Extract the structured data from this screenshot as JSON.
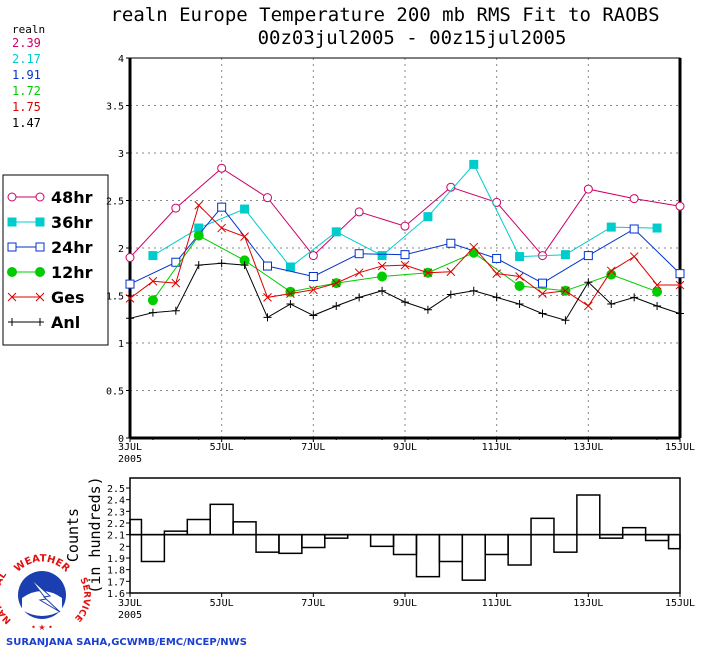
{
  "header": {
    "title_line1": "realn Europe Temperature 200 mb RMS Fit to RAOBS",
    "title_line2": "00z03jul2005 - 00z15jul2005"
  },
  "summary": {
    "label": "realn",
    "values": [
      {
        "text": "2.39",
        "color": "#cc0066"
      },
      {
        "text": "2.17",
        "color": "#00cccc"
      },
      {
        "text": "1.91",
        "color": "#0033cc"
      },
      {
        "text": "1.72",
        "color": "#00cc00"
      },
      {
        "text": "1.75",
        "color": "#dd0000"
      },
      {
        "text": "1.47",
        "color": "#000000"
      }
    ]
  },
  "credit": "SURANJANA SAHA,GCWMB/EMC/NCEP/NWS",
  "logo": {
    "top_text": "WEATHER",
    "left_text": "NATIONAL",
    "right_text": "SERVICE"
  },
  "chart_data": [
    {
      "type": "line",
      "title": "realn Europe Temperature 200 mb RMS Fit to RAOBS",
      "subtitle": "00z03jul2005 - 00z15jul2005",
      "xlabel": "",
      "ylabel": "",
      "x_unit": "days since 00z03JUL2005",
      "xlim": [
        0,
        12
      ],
      "ylim": [
        0,
        4
      ],
      "yticks": [
        "0",
        "0.5",
        "1",
        "1.5",
        "2",
        "2.5",
        "3",
        "3.5",
        "4"
      ],
      "xticks": [
        {
          "day": 0,
          "label": "3JUL",
          "sublabel": "2005"
        },
        {
          "day": 2,
          "label": "5JUL"
        },
        {
          "day": 4,
          "label": "7JUL"
        },
        {
          "day": 6,
          "label": "9JUL"
        },
        {
          "day": 8,
          "label": "11JUL"
        },
        {
          "day": 10,
          "label": "13JUL"
        },
        {
          "day": 12,
          "label": "15JUL"
        }
      ],
      "grid": true,
      "legend_position": "left",
      "series": [
        {
          "name": "48hr",
          "color": "#cc0066",
          "marker": "open-circle",
          "x": [
            0,
            1,
            2,
            3,
            4,
            5,
            6,
            7,
            8,
            9,
            10,
            11,
            12
          ],
          "values": [
            1.9,
            2.42,
            2.84,
            2.53,
            1.92,
            2.38,
            2.23,
            2.64,
            2.48,
            1.92,
            2.62,
            2.52,
            2.44
          ]
        },
        {
          "name": "36hr",
          "color": "#00cccc",
          "marker": "filled-square",
          "x": [
            0.5,
            1.5,
            2.5,
            3.5,
            4.5,
            5.5,
            6.5,
            7.5,
            8.5,
            9.5,
            10.5,
            11.5
          ],
          "values": [
            1.92,
            2.21,
            2.41,
            1.8,
            2.17,
            1.92,
            2.33,
            2.88,
            1.91,
            1.93,
            2.22,
            2.21
          ]
        },
        {
          "name": "24hr",
          "color": "#0033cc",
          "marker": "open-square",
          "x": [
            0,
            1,
            2,
            3,
            4,
            5,
            6,
            7,
            8,
            9,
            10,
            11,
            12
          ],
          "values": [
            1.62,
            1.85,
            2.43,
            1.81,
            1.7,
            1.94,
            1.93,
            2.05,
            1.89,
            1.63,
            1.92,
            2.2,
            1.73
          ]
        },
        {
          "name": "12hr",
          "color": "#00cc00",
          "marker": "filled-circle",
          "x": [
            0.5,
            1.5,
            2.5,
            3.5,
            4.5,
            5.5,
            6.5,
            7.5,
            8.5,
            9.5,
            10.5,
            11.5
          ],
          "values": [
            1.45,
            2.13,
            1.87,
            1.54,
            1.63,
            1.7,
            1.74,
            1.95,
            1.6,
            1.55,
            1.72,
            1.54
          ]
        },
        {
          "name": "Ges",
          "color": "#dd0000",
          "marker": "x",
          "x": [
            0,
            0.5,
            1,
            1.5,
            2,
            2.5,
            3,
            3.5,
            4,
            4.5,
            5,
            5.5,
            6,
            6.5,
            7,
            7.5,
            8,
            8.5,
            9,
            9.5,
            10,
            10.5,
            11,
            11.5,
            12
          ],
          "values": [
            1.47,
            1.65,
            1.63,
            2.45,
            2.21,
            2.12,
            1.48,
            1.52,
            1.56,
            1.63,
            1.74,
            1.81,
            1.82,
            1.74,
            1.75,
            2.01,
            1.73,
            1.7,
            1.52,
            1.55,
            1.39,
            1.76,
            1.91,
            1.61,
            1.61
          ]
        },
        {
          "name": "Anl",
          "color": "#000000",
          "marker": "plus",
          "x": [
            0,
            0.5,
            1,
            1.5,
            2,
            2.5,
            3,
            3.5,
            4,
            4.5,
            5,
            5.5,
            6,
            6.5,
            7,
            7.5,
            8,
            8.5,
            9,
            9.5,
            10,
            10.5,
            11,
            11.5,
            12
          ],
          "values": [
            1.26,
            1.32,
            1.34,
            1.82,
            1.84,
            1.82,
            1.27,
            1.41,
            1.29,
            1.39,
            1.48,
            1.55,
            1.43,
            1.35,
            1.51,
            1.55,
            1.48,
            1.41,
            1.31,
            1.24,
            1.64,
            1.41,
            1.48,
            1.39,
            1.31
          ]
        }
      ]
    },
    {
      "type": "bar",
      "title": "",
      "ylabel_line1": "Counts",
      "ylabel_line2": "(in hundreds)",
      "x_unit": "days since 00z03JUL2005",
      "xlim": [
        0,
        12
      ],
      "ylim": [
        1.6,
        2.55
      ],
      "baseline": 2.1,
      "yticks": [
        "1.6",
        "1.7",
        "1.8",
        "1.9",
        "2",
        "2.1",
        "2.2",
        "2.3",
        "2.4",
        "2.5"
      ],
      "xticks": [
        {
          "day": 0,
          "label": "3JUL",
          "sublabel": "2005"
        },
        {
          "day": 2,
          "label": "5JUL"
        },
        {
          "day": 4,
          "label": "7JUL"
        },
        {
          "day": 6,
          "label": "9JUL"
        },
        {
          "day": 8,
          "label": "11JUL"
        },
        {
          "day": 10,
          "label": "13JUL"
        },
        {
          "day": 12,
          "label": "15JUL"
        }
      ],
      "x": [
        0,
        0.5,
        1,
        1.5,
        2,
        2.5,
        3,
        3.5,
        4,
        4.5,
        5,
        5.5,
        6,
        6.5,
        7,
        7.5,
        8,
        8.5,
        9,
        9.5,
        10,
        10.5,
        11,
        11.5,
        12
      ],
      "values": [
        2.23,
        1.87,
        2.13,
        2.23,
        2.36,
        2.21,
        1.95,
        1.94,
        1.99,
        2.07,
        2.1,
        2.0,
        1.93,
        1.74,
        1.87,
        1.71,
        1.93,
        1.84,
        2.24,
        1.95,
        2.44,
        2.07,
        2.16,
        2.05,
        1.98
      ]
    }
  ]
}
